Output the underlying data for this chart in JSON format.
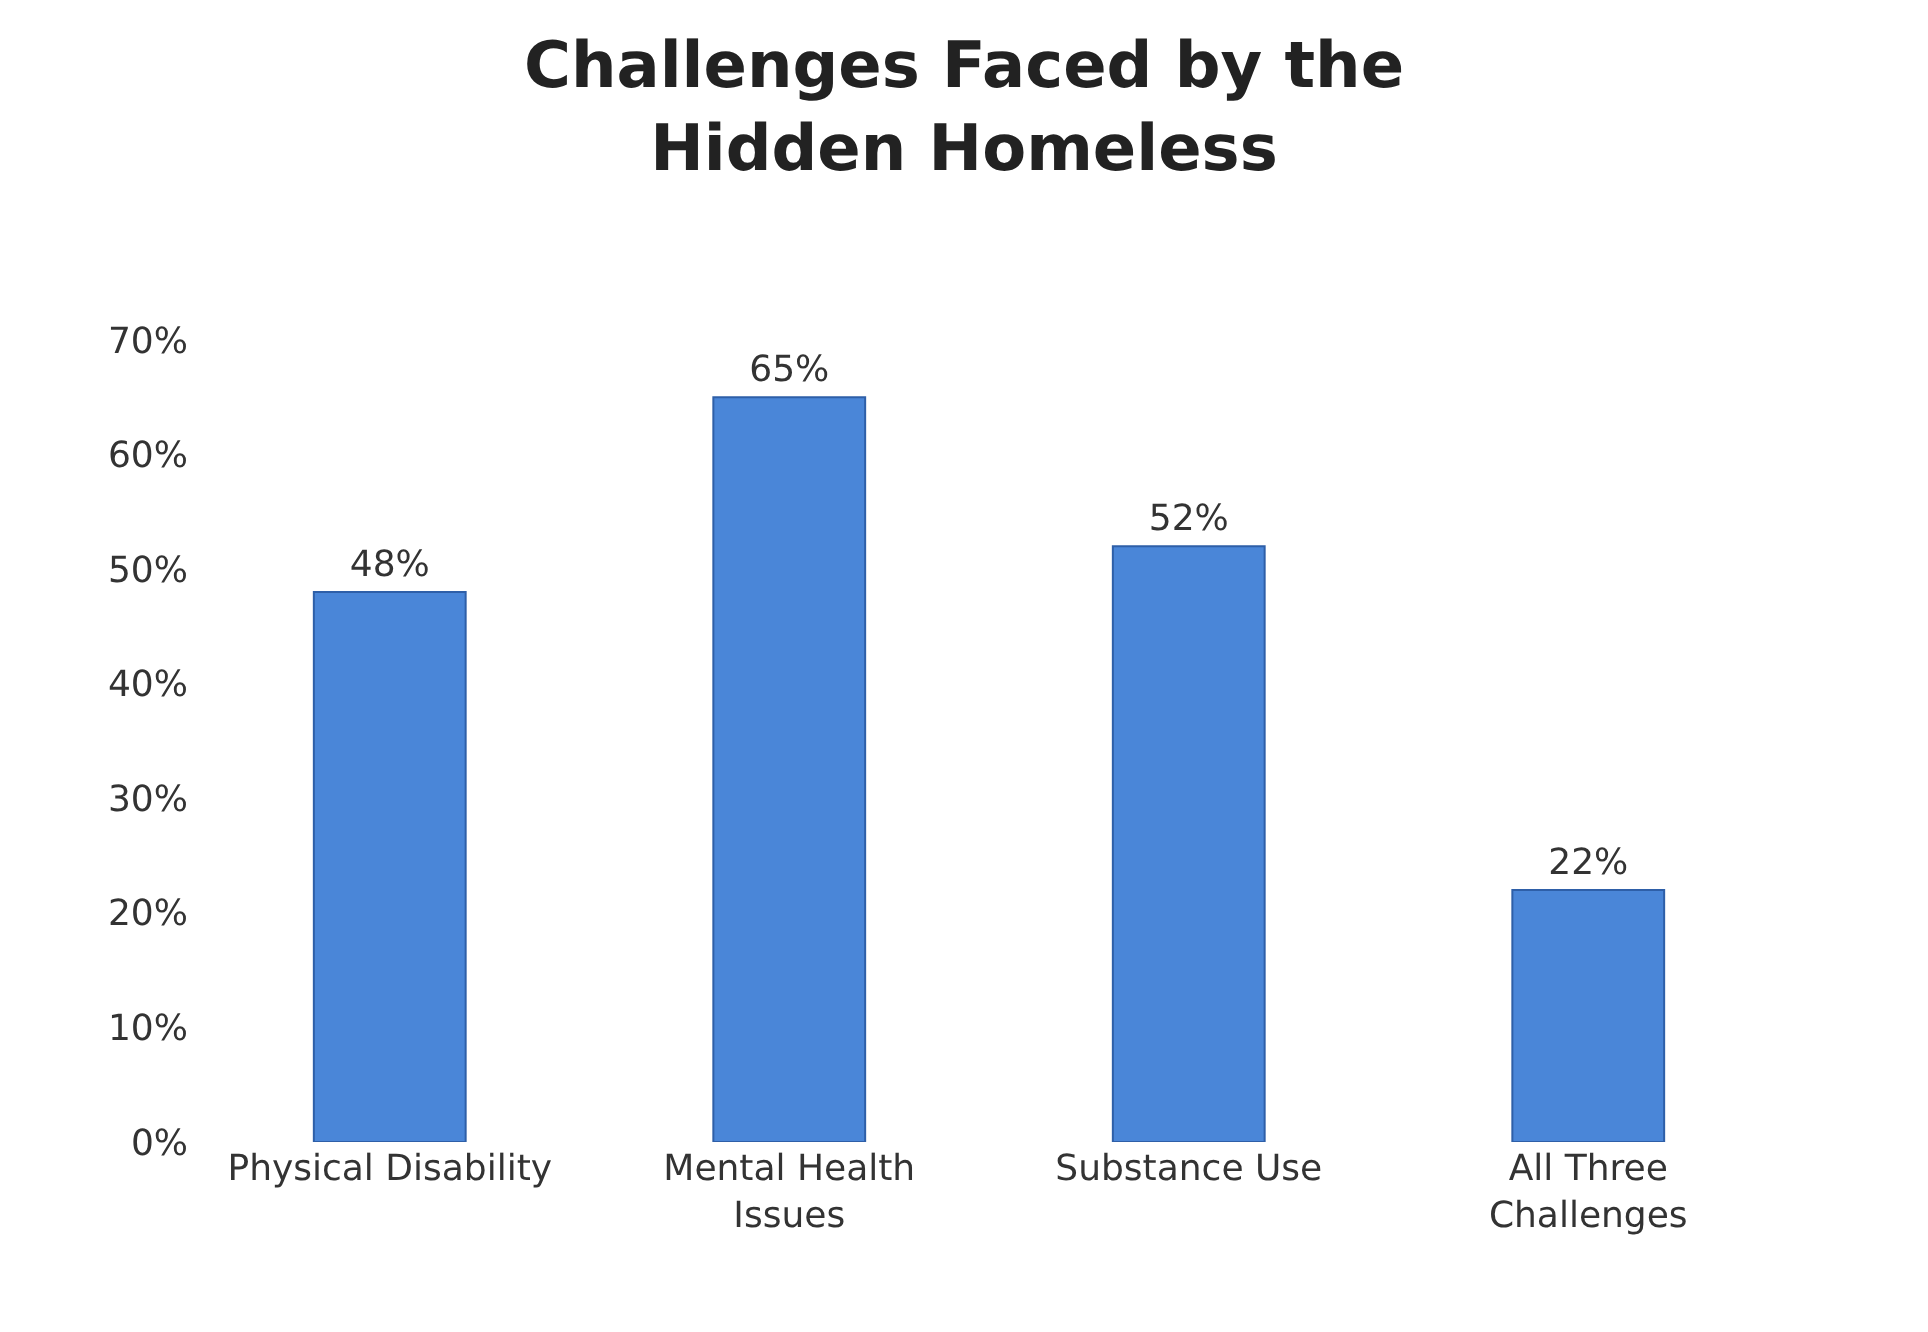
{
  "chart_data": {
    "type": "bar",
    "title": "Challenges Faced by the\nHidden Homeless",
    "categories": [
      "Physical Disability",
      "Mental Health\nIssues",
      "Substance Use",
      "All Three\nChallenges"
    ],
    "values": [
      48,
      65,
      52,
      22
    ],
    "value_labels": [
      "48%",
      "65%",
      "52%",
      "22%"
    ],
    "color": "#4a86d8",
    "ylim": [
      0,
      70
    ],
    "yticks": [
      {
        "value": 0,
        "label": "0%"
      },
      {
        "value": 10,
        "label": "10%"
      },
      {
        "value": 20,
        "label": "20%"
      },
      {
        "value": 30,
        "label": "30%"
      },
      {
        "value": 40,
        "label": "40%"
      },
      {
        "value": 50,
        "label": "50%"
      },
      {
        "value": 60,
        "label": "60%"
      },
      {
        "value": 70,
        "label": "70%"
      }
    ],
    "legend": false
  }
}
